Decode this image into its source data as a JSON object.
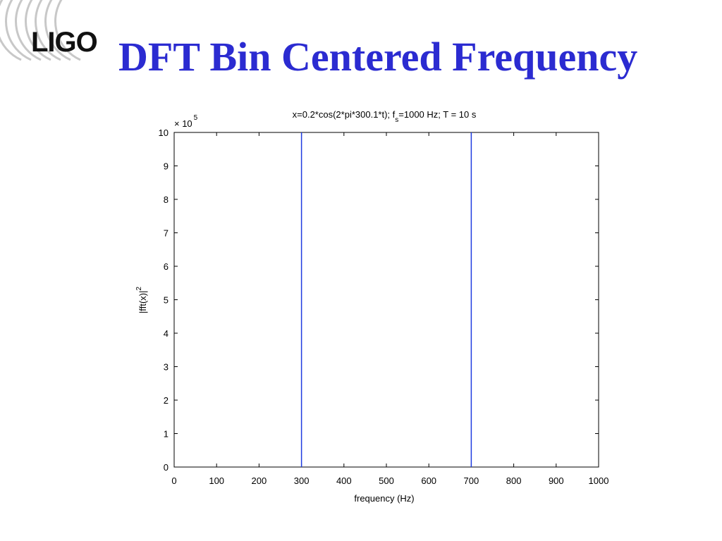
{
  "slide": {
    "logo_text": "LIGO",
    "title": "DFT Bin Centered Frequency",
    "title_color": "#2b2bd1"
  },
  "chart_data": {
    "type": "line",
    "title": "x=0.2*cos(2*pi*300.1*t); f_s=1000 Hz; T = 10 s",
    "title_parts": {
      "before_sub": "x=0.2*cos(2*pi*300.1*t); f",
      "sub": "s",
      "after_sub": "=1000 Hz; T = 10 s"
    },
    "xlabel": "frequency (Hz)",
    "ylabel": "|fft(x)|",
    "ylabel_sup": "2",
    "y_multiplier": "× 10",
    "y_multiplier_exp": "5",
    "xlim": [
      0,
      1000
    ],
    "ylim": [
      0,
      10
    ],
    "x_ticks": [
      0,
      100,
      200,
      300,
      400,
      500,
      600,
      700,
      800,
      900,
      1000
    ],
    "y_ticks": [
      0,
      1,
      2,
      3,
      4,
      5,
      6,
      7,
      8,
      9,
      10
    ],
    "grid": false,
    "line_color": "#1f3ce0",
    "series": [
      {
        "x": [
          300,
          300
        ],
        "y": [
          0,
          10
        ]
      },
      {
        "x": [
          700,
          700
        ],
        "y": [
          0,
          10
        ]
      }
    ]
  }
}
